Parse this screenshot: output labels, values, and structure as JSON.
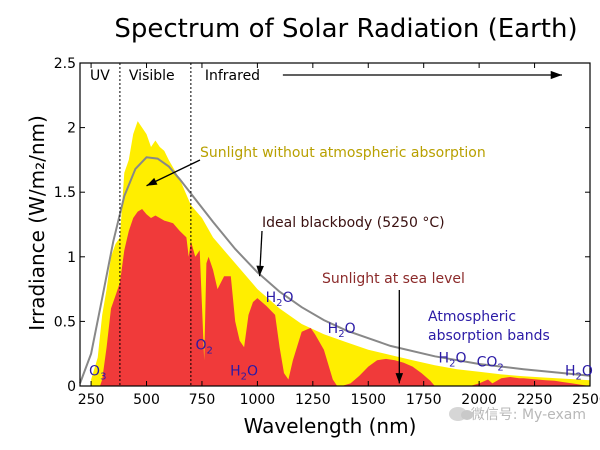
{
  "chart_data": {
    "type": "area",
    "title": "Spectrum of Solar Radiation (Earth)",
    "xlabel": "Wavelength (nm)",
    "ylabel": "Irradiance (W/m₂/nm)",
    "xlim": [
      200,
      2500
    ],
    "ylim": [
      0,
      2.5
    ],
    "x_ticks": [
      250,
      500,
      750,
      1000,
      1250,
      1500,
      1750,
      2000,
      2250,
      2500
    ],
    "y_ticks": [
      0,
      0.5,
      1,
      1.5,
      2,
      2.5
    ],
    "y_tick_labels": [
      "0",
      "0.5",
      "1",
      "1.5",
      "2",
      "2.5"
    ],
    "grid": false,
    "colors": {
      "top_of_atmosphere": "#ffee00",
      "sea_level": "#f03a3a",
      "blackbody": "#888888",
      "absorption_label": "#2a1aa6",
      "top_label": "#b8a000",
      "sea_label": "#8b2a2a",
      "blackbody_label": "#3a1010"
    },
    "regions": [
      {
        "label": "UV",
        "from": 200,
        "to": 380
      },
      {
        "label": "Visible",
        "from": 380,
        "to": 700
      },
      {
        "label": "Infrared",
        "from": 700,
        "to": 2500
      }
    ],
    "series": [
      {
        "name": "Sunlight without atmospheric absorption",
        "x": [
          250,
          280,
          300,
          320,
          340,
          360,
          380,
          400,
          420,
          440,
          460,
          480,
          500,
          520,
          540,
          560,
          580,
          600,
          650,
          700,
          750,
          800,
          900,
          1000,
          1100,
          1200,
          1300,
          1400,
          1500,
          1600,
          1700,
          1800,
          1900,
          2000,
          2100,
          2200,
          2300,
          2400,
          2500
        ],
        "y": [
          0.05,
          0.22,
          0.55,
          0.75,
          1.0,
          1.1,
          1.15,
          1.65,
          1.75,
          1.95,
          2.05,
          2.0,
          1.95,
          1.85,
          1.9,
          1.85,
          1.82,
          1.75,
          1.6,
          1.4,
          1.3,
          1.15,
          0.95,
          0.75,
          0.6,
          0.48,
          0.4,
          0.34,
          0.28,
          0.24,
          0.2,
          0.16,
          0.13,
          0.11,
          0.09,
          0.075,
          0.065,
          0.055,
          0.045
        ]
      },
      {
        "name": "Sunlight at sea level",
        "x": [
          290,
          300,
          320,
          340,
          360,
          380,
          400,
          420,
          440,
          460,
          480,
          500,
          520,
          540,
          560,
          580,
          600,
          620,
          650,
          680,
          690,
          700,
          720,
          740,
          760,
          770,
          780,
          800,
          820,
          850,
          880,
          900,
          920,
          940,
          960,
          980,
          1000,
          1040,
          1080,
          1100,
          1120,
          1140,
          1160,
          1200,
          1240,
          1260,
          1300,
          1340,
          1360,
          1380,
          1420,
          1460,
          1500,
          1540,
          1580,
          1620,
          1660,
          1700,
          1740,
          1780,
          1800,
          1840,
          1880,
          1920,
          1960,
          2000,
          2040,
          2060,
          2100,
          2140,
          2180,
          2200,
          2260,
          2300,
          2340,
          2380,
          2420,
          2460,
          2500
        ],
        "y": [
          0,
          0.05,
          0.3,
          0.6,
          0.7,
          0.8,
          1.05,
          1.2,
          1.3,
          1.35,
          1.37,
          1.33,
          1.3,
          1.32,
          1.3,
          1.28,
          1.27,
          1.26,
          1.2,
          1.15,
          1.0,
          1.12,
          1.0,
          1.05,
          0.2,
          0.95,
          1.0,
          0.9,
          0.75,
          0.85,
          0.85,
          0.5,
          0.35,
          0.3,
          0.55,
          0.65,
          0.68,
          0.62,
          0.55,
          0.3,
          0.1,
          0.05,
          0.2,
          0.42,
          0.45,
          0.4,
          0.28,
          0.05,
          0.0,
          0.0,
          0.02,
          0.08,
          0.15,
          0.2,
          0.21,
          0.2,
          0.18,
          0.15,
          0.1,
          0.04,
          0.0,
          0.0,
          0.0,
          0.0,
          0.0,
          0.02,
          0.05,
          0.02,
          0.06,
          0.07,
          0.06,
          0.06,
          0.05,
          0.045,
          0.04,
          0.03,
          0.02,
          0.01,
          0.0
        ]
      },
      {
        "name": "Ideal blackbody (5250 °C)",
        "x": [
          200,
          250,
          300,
          350,
          400,
          450,
          500,
          550,
          600,
          650,
          700,
          800,
          900,
          1000,
          1100,
          1200,
          1300,
          1400,
          1500,
          1600,
          1800,
          2000,
          2200,
          2500
        ],
        "y": [
          0.02,
          0.25,
          0.68,
          1.12,
          1.47,
          1.68,
          1.77,
          1.76,
          1.7,
          1.6,
          1.49,
          1.27,
          1.06,
          0.88,
          0.73,
          0.61,
          0.51,
          0.43,
          0.37,
          0.31,
          0.23,
          0.17,
          0.13,
          0.08
        ]
      }
    ],
    "annotations": {
      "top_of_atmosphere": "Sunlight without atmospheric absorption",
      "blackbody": "Ideal blackbody (5250 °C)",
      "sea_level": "Sunlight at sea level",
      "absorption_line1": "Atmospheric",
      "absorption_line2": "absorption bands"
    },
    "absorbers": [
      {
        "base": "O",
        "sub": "3",
        "x": 280,
        "y": 0.05
      },
      {
        "base": "O",
        "sub": "2",
        "x": 760,
        "y": 0.25
      },
      {
        "base": "H",
        "sub": "2",
        "tail": "O",
        "x": 940,
        "y": 0.05
      },
      {
        "base": "H",
        "sub": "2",
        "tail": "O",
        "x": 1100,
        "y": 0.62
      },
      {
        "base": "H",
        "sub": "2",
        "tail": "O",
        "x": 1380,
        "y": 0.38
      },
      {
        "base": "H",
        "sub": "2",
        "tail": "O",
        "x": 1880,
        "y": 0.15
      },
      {
        "base": "CO",
        "sub": "2",
        "x": 2050,
        "y": 0.12
      },
      {
        "base": "H",
        "sub": "2",
        "tail": "O",
        "x": 2450,
        "y": 0.05
      }
    ]
  },
  "watermark": {
    "text": "微信号: My-exam"
  }
}
